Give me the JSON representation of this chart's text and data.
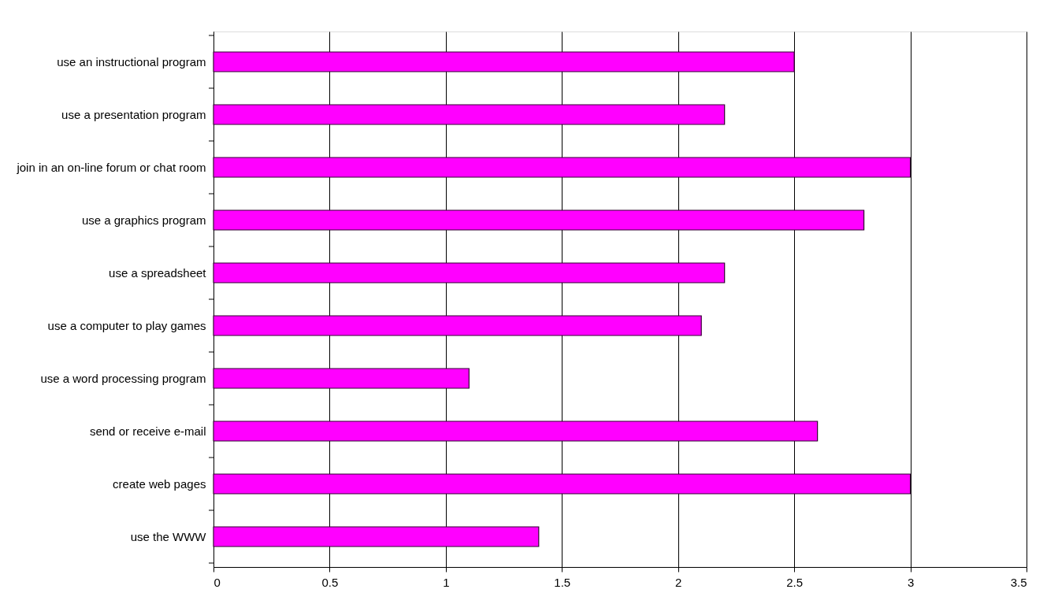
{
  "chart_data": {
    "type": "bar",
    "orientation": "horizontal",
    "categories": [
      "use an instructional program",
      "use a presentation program",
      "join in an on-line forum or chat room",
      "use a graphics program",
      "use a spreadsheet",
      "use a computer to play games",
      "use a word processing program",
      "send or receive e-mail",
      "create web pages",
      "use the WWW"
    ],
    "values": [
      2.5,
      2.2,
      3.0,
      2.8,
      2.2,
      2.1,
      1.1,
      2.6,
      3.0,
      1.4
    ],
    "color": "#ff00ff",
    "xlim": [
      0,
      3.5
    ],
    "xticks": [
      0,
      0.5,
      1,
      1.5,
      2,
      2.5,
      3,
      3.5
    ],
    "grid": "x"
  }
}
